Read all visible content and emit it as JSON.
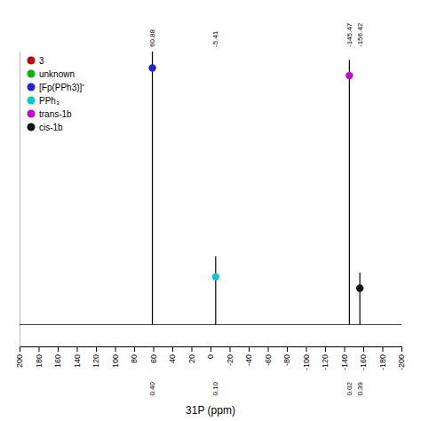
{
  "chart_data": {
    "type": "stem",
    "xlabel": "31P (ppm)",
    "xlim": [
      200,
      -200
    ],
    "xticks": [
      200,
      180,
      160,
      140,
      120,
      100,
      80,
      60,
      40,
      20,
      0,
      -20,
      -40,
      -60,
      -80,
      -100,
      -120,
      -140,
      -160,
      -180,
      -200
    ],
    "ylim": [
      -0.08,
      1.0
    ],
    "tick_labels": "x",
    "grid": false,
    "legend": "upper left",
    "baseline": 0,
    "color": "#000000",
    "x": [
      60.88,
      -5.41,
      -145.47,
      -156.42
    ],
    "values": [
      1.0,
      0.25,
      0.97,
      0.19
    ],
    "x_labels": [
      "60.88",
      "-5.41",
      "-145.47",
      "-156.42"
    ],
    "integrals": [
      0.4,
      0.1,
      0.02,
      0.39
    ],
    "integral_labels": [
      "0.40",
      "0.10",
      "0.02",
      "0.39"
    ],
    "series": [
      {
        "name": "3",
        "type": "scatter",
        "color": "#cc0000",
        "x": [],
        "values": []
      },
      {
        "name": "unknown",
        "type": "scatter",
        "color": "#00bb00",
        "x": [],
        "values": []
      },
      {
        "name": "[Fp(PPh3)]⁺",
        "type": "scatter",
        "color": "#2222dd",
        "x": [
          60.88
        ],
        "values": [
          0.94
        ]
      },
      {
        "name": "PPh₃",
        "type": "scatter",
        "color": "#00cccc",
        "x": [
          -5.41
        ],
        "values": [
          0.175
        ]
      },
      {
        "name": "trans-1b",
        "type": "scatter",
        "color": "#cc00cc",
        "x": [
          -145.47
        ],
        "values": [
          0.9118
        ]
      },
      {
        "name": "cis-1b",
        "type": "scatter",
        "color": "#111111",
        "x": [
          -156.42
        ],
        "values": [
          0.133
        ]
      }
    ]
  }
}
